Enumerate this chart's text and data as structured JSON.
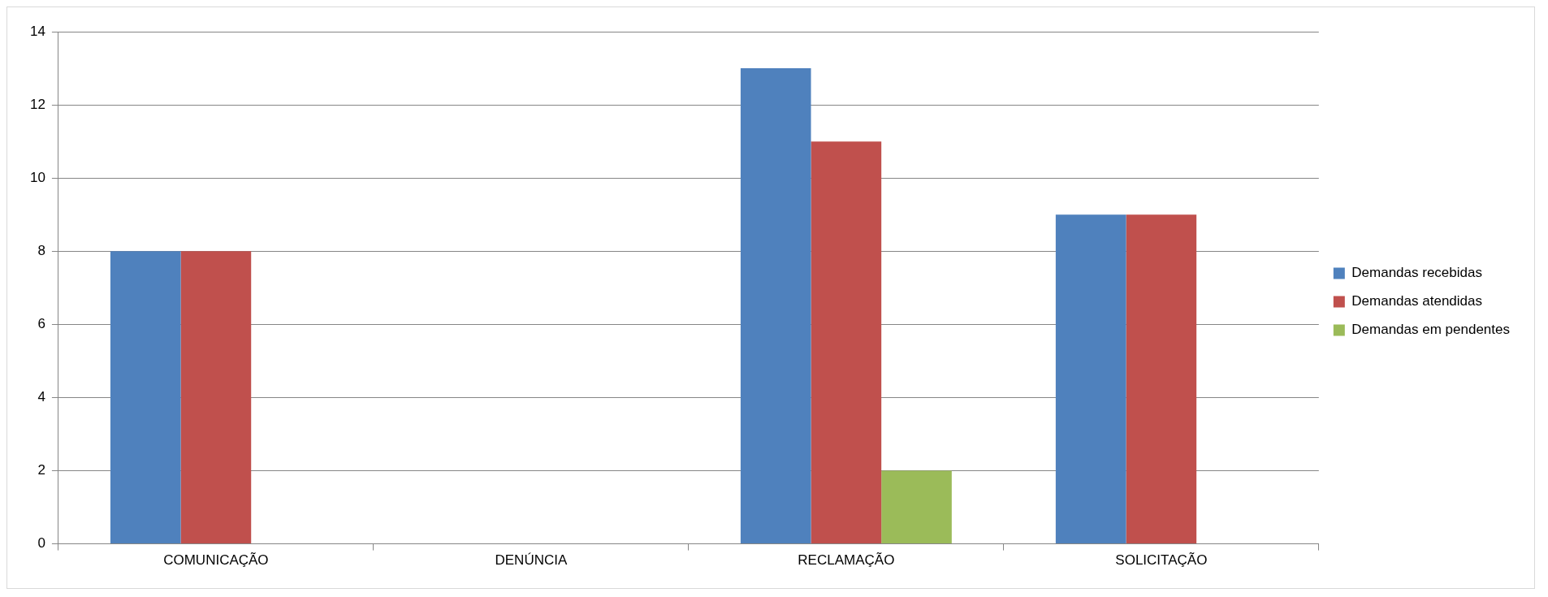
{
  "chart_data": {
    "type": "bar",
    "categories": [
      "COMUNICAÇÃO",
      "DENÚNCIA",
      "RECLAMAÇÃO",
      "SOLICITAÇÃO"
    ],
    "series": [
      {
        "name": "Demandas recebidas",
        "color": "#4f81bd",
        "values": [
          8,
          0,
          13,
          9
        ]
      },
      {
        "name": "Demandas atendidas",
        "color": "#c0504d",
        "values": [
          8,
          0,
          11,
          9
        ]
      },
      {
        "name": "Demandas em pendentes",
        "color": "#9bbb59",
        "values": [
          0,
          0,
          2,
          0
        ]
      }
    ],
    "ylim": [
      0,
      14
    ],
    "yticks": [
      0,
      2,
      4,
      6,
      8,
      10,
      12,
      14
    ],
    "grid": "y",
    "legend": "right"
  }
}
